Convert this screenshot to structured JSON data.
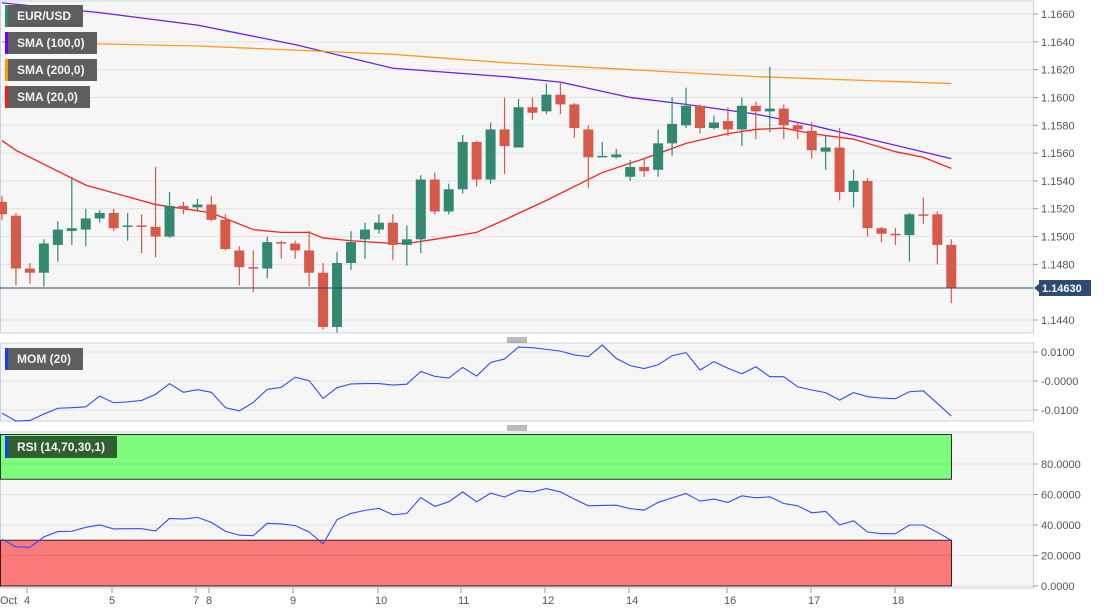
{
  "legends": {
    "main": [
      {
        "label": "EUR/USD",
        "color": "#2e8b72"
      },
      {
        "label": "SMA (100,0)",
        "color": "#6a00ff"
      },
      {
        "label": "SMA (200,0)",
        "color": "#ff9800"
      },
      {
        "label": "SMA (20,0)",
        "color": "#ff1a1a"
      }
    ],
    "mom": {
      "label": "MOM (20)",
      "color": "#1a3cff"
    },
    "rsi": {
      "label": "RSI (14,70,30,1)",
      "color": "#1a3cff"
    }
  },
  "colors": {
    "up": "#338872",
    "down": "#d65a4a",
    "sma100": "#6a1ee8",
    "sma200": "#ff9a1a",
    "sma20": "#ff2020",
    "osc": "#2f4cff",
    "overbought": "#7dfc7d",
    "oversold": "#fa7a7a",
    "last_price_bg": "#2d4a75"
  },
  "chart_data": [
    {
      "type": "candlestick",
      "title": "EUR/USD",
      "ylim": [
        1.143,
        1.167
      ],
      "yticks": [
        "1.1660",
        "1.1640",
        "1.1620",
        "1.1600",
        "1.1580",
        "1.1560",
        "1.1540",
        "1.1520",
        "1.1500",
        "1.1480",
        "1.1440"
      ],
      "last_price": "1.14630",
      "ohlc": [
        [
          1.1525,
          1.1529,
          1.1512,
          1.1516
        ],
        [
          1.1515,
          1.1517,
          1.1465,
          1.1477
        ],
        [
          1.1477,
          1.1481,
          1.1466,
          1.1474
        ],
        [
          1.1474,
          1.1498,
          1.1464,
          1.1495
        ],
        [
          1.1494,
          1.1511,
          1.1482,
          1.1505
        ],
        [
          1.1504,
          1.1543,
          1.1494,
          1.1506
        ],
        [
          1.1505,
          1.152,
          1.1493,
          1.1513
        ],
        [
          1.1513,
          1.1519,
          1.151,
          1.1517
        ],
        [
          1.1517,
          1.152,
          1.1504,
          1.1506
        ],
        [
          1.1507,
          1.1517,
          1.1497,
          1.1508
        ],
        [
          1.1508,
          1.1516,
          1.1488,
          1.1507
        ],
        [
          1.1507,
          1.155,
          1.1485,
          1.15
        ],
        [
          1.15,
          1.1532,
          1.1499,
          1.1522
        ],
        [
          1.1522,
          1.1525,
          1.1516,
          1.152
        ],
        [
          1.1521,
          1.1527,
          1.1519,
          1.1523
        ],
        [
          1.1523,
          1.1529,
          1.1511,
          1.1512
        ],
        [
          1.1512,
          1.1516,
          1.149,
          1.1491
        ],
        [
          1.149,
          1.1493,
          1.1465,
          1.1478
        ],
        [
          1.1478,
          1.149,
          1.146,
          1.1477
        ],
        [
          1.1477,
          1.15,
          1.147,
          1.1496
        ],
        [
          1.1496,
          1.1497,
          1.1484,
          1.1495
        ],
        [
          1.1495,
          1.1497,
          1.1484,
          1.149
        ],
        [
          1.149,
          1.1504,
          1.1464,
          1.1474
        ],
        [
          1.1474,
          1.1481,
          1.1433,
          1.1435
        ],
        [
          1.1435,
          1.1489,
          1.1431,
          1.1481
        ],
        [
          1.1481,
          1.1504,
          1.1476,
          1.1496
        ],
        [
          1.1498,
          1.151,
          1.1484,
          1.1505
        ],
        [
          1.1505,
          1.1516,
          1.1502,
          1.151
        ],
        [
          1.151,
          1.1516,
          1.1483,
          1.1494
        ],
        [
          1.1494,
          1.1508,
          1.1479,
          1.1498
        ],
        [
          1.1498,
          1.1544,
          1.1488,
          1.1541
        ],
        [
          1.1541,
          1.1546,
          1.1516,
          1.1518
        ],
        [
          1.1518,
          1.1538,
          1.1516,
          1.1534
        ],
        [
          1.1534,
          1.1573,
          1.1531,
          1.1568
        ],
        [
          1.1568,
          1.1569,
          1.1536,
          1.1541
        ],
        [
          1.1541,
          1.1582,
          1.1538,
          1.1577
        ],
        [
          1.1577,
          1.16,
          1.1545,
          1.1565
        ],
        [
          1.1564,
          1.1599,
          1.1564,
          1.1593
        ],
        [
          1.1593,
          1.16,
          1.1584,
          1.1589
        ],
        [
          1.159,
          1.161,
          1.1588,
          1.1602
        ],
        [
          1.1602,
          1.1611,
          1.1588,
          1.1595
        ],
        [
          1.1595,
          1.1596,
          1.1571,
          1.1578
        ],
        [
          1.1577,
          1.158,
          1.1535,
          1.1557
        ],
        [
          1.1558,
          1.1568,
          1.1557,
          1.1558
        ],
        [
          1.1557,
          1.1563,
          1.1556,
          1.1559
        ],
        [
          1.1543,
          1.1555,
          1.154,
          1.155
        ],
        [
          1.155,
          1.1556,
          1.1543,
          1.1547
        ],
        [
          1.1548,
          1.1577,
          1.1543,
          1.1567
        ],
        [
          1.1567,
          1.16,
          1.1558,
          1.1581
        ],
        [
          1.158,
          1.1607,
          1.1578,
          1.1594
        ],
        [
          1.1594,
          1.1595,
          1.1574,
          1.1578
        ],
        [
          1.1578,
          1.1587,
          1.1577,
          1.1582
        ],
        [
          1.1583,
          1.1593,
          1.1572,
          1.1577
        ],
        [
          1.1577,
          1.16,
          1.1565,
          1.1594
        ],
        [
          1.1594,
          1.1597,
          1.157,
          1.159
        ],
        [
          1.159,
          1.1622,
          1.1575,
          1.1592
        ],
        [
          1.1592,
          1.1595,
          1.157,
          1.158
        ],
        [
          1.158,
          1.1582,
          1.157,
          1.1577
        ],
        [
          1.1576,
          1.1582,
          1.1556,
          1.1562
        ],
        [
          1.1561,
          1.1573,
          1.1548,
          1.1564
        ],
        [
          1.1564,
          1.1578,
          1.1526,
          1.1532
        ],
        [
          1.1532,
          1.1548,
          1.1521,
          1.154
        ],
        [
          1.154,
          1.1542,
          1.15,
          1.1506
        ],
        [
          1.1506,
          1.1507,
          1.1496,
          1.1502
        ],
        [
          1.1502,
          1.1506,
          1.1494,
          1.1501
        ],
        [
          1.1501,
          1.1517,
          1.1482,
          1.1516
        ],
        [
          1.1516,
          1.1528,
          1.1509,
          1.1515
        ],
        [
          1.1516,
          1.1518,
          1.148,
          1.1494
        ],
        [
          1.1494,
          1.1498,
          1.1452,
          1.1463
        ]
      ],
      "sma": [
        {
          "name": "SMA (100,0)",
          "points": [
            [
              0,
              1.1668
            ],
            [
              7,
              1.1661
            ],
            [
              14,
              1.1652
            ],
            [
              21,
              1.1638
            ],
            [
              28,
              1.1621
            ],
            [
              36,
              1.1615
            ],
            [
              40,
              1.1611
            ],
            [
              45,
              1.16
            ],
            [
              49,
              1.1595
            ],
            [
              54,
              1.1588
            ],
            [
              58,
              1.158
            ],
            [
              63,
              1.1568
            ],
            [
              68,
              1.1556
            ]
          ]
        },
        {
          "name": "SMA (200,0)",
          "points": [
            [
              0,
              1.164
            ],
            [
              14,
              1.1637
            ],
            [
              28,
              1.1631
            ],
            [
              36,
              1.1625
            ],
            [
              54,
              1.1615
            ],
            [
              68,
              1.161
            ]
          ]
        },
        {
          "name": "SMA (20,0)",
          "points": [
            [
              0,
              1.1569
            ],
            [
              1,
              1.1562
            ],
            [
              6,
              1.1537
            ],
            [
              11,
              1.1523
            ],
            [
              15,
              1.1517
            ],
            [
              18,
              1.1505
            ],
            [
              20,
              1.1503
            ],
            [
              22,
              1.1503
            ],
            [
              23,
              1.1499
            ],
            [
              25,
              1.1497
            ],
            [
              28,
              1.1495
            ],
            [
              29,
              1.1495
            ],
            [
              31,
              1.1498
            ],
            [
              34,
              1.1503
            ],
            [
              36,
              1.1512
            ],
            [
              39,
              1.1526
            ],
            [
              43,
              1.1546
            ],
            [
              46,
              1.1556
            ],
            [
              49,
              1.1567
            ],
            [
              52,
              1.1574
            ],
            [
              54,
              1.1577
            ],
            [
              56,
              1.1578
            ],
            [
              58,
              1.1574
            ],
            [
              61,
              1.157
            ],
            [
              64,
              1.1561
            ],
            [
              66,
              1.1557
            ],
            [
              68,
              1.1549
            ]
          ]
        }
      ]
    },
    {
      "type": "line",
      "title": "MOM (20)",
      "ylim": [
        -0.014,
        0.013
      ],
      "yticks": [
        "0.0100",
        "-0.0000",
        "-0.0100"
      ],
      "values": [
        -0.0111,
        -0.0138,
        -0.0136,
        -0.0114,
        -0.0094,
        -0.0092,
        -0.0089,
        -0.0052,
        -0.0075,
        -0.0072,
        -0.0067,
        -0.0046,
        -0.0009,
        -0.0039,
        -0.003,
        -0.0039,
        -0.0092,
        -0.0103,
        -0.0074,
        -0.0029,
        -0.0022,
        0.0013,
        0.0001,
        -0.006,
        -0.0023,
        -0.001,
        -0.0009,
        -0.0009,
        -0.0014,
        -0.0011,
        0.0033,
        0.0016,
        0.001,
        0.0047,
        0.0017,
        0.0064,
        0.0076,
        0.0117,
        0.0115,
        0.0109,
        0.0103,
        0.009,
        0.0084,
        0.0124,
        0.0078,
        0.0053,
        0.0043,
        0.0056,
        0.0087,
        0.0098,
        0.0038,
        0.0067,
        0.0044,
        0.0025,
        0.0049,
        0.0015,
        0.0015,
        -0.002,
        -0.0031,
        -0.004,
        -0.0066,
        -0.004,
        -0.0054,
        -0.0059,
        -0.0061,
        -0.0037,
        -0.0034,
        -0.0077,
        -0.0121
      ]
    },
    {
      "type": "line",
      "title": "RSI (14,70,30,1)",
      "ylim": [
        0,
        100
      ],
      "overbought": 70,
      "oversold": 30,
      "yticks": [
        "80.0000",
        "60.0000",
        "40.0000",
        "20.0000",
        "0.0000"
      ],
      "values": [
        30.7,
        25.7,
        25.4,
        32.2,
        35.7,
        35.9,
        38.5,
        40.0,
        37.4,
        37.6,
        37.6,
        36.1,
        44.3,
        43.9,
        45.0,
        41.7,
        35.9,
        33.3,
        33.0,
        41.1,
        40.7,
        39.6,
        35.4,
        27.6,
        43.5,
        47.6,
        49.6,
        50.9,
        46.7,
        47.6,
        58.0,
        52.2,
        55.2,
        61.7,
        55.2,
        60.9,
        58.3,
        62.6,
        61.7,
        63.9,
        61.7,
        57.0,
        52.6,
        52.8,
        53.0,
        50.7,
        49.8,
        54.8,
        57.8,
        60.7,
        55.7,
        57.0,
        54.8,
        59.1,
        57.8,
        58.5,
        54.1,
        52.6,
        48.0,
        48.9,
        40.0,
        42.8,
        35.4,
        34.3,
        34.3,
        40.0,
        40.0,
        35.2,
        30.0
      ]
    }
  ],
  "x_axis": {
    "labels": [
      "Oct",
      "4",
      "5",
      "7",
      "8",
      "9",
      "10",
      "11",
      "12",
      "14",
      "16",
      "17",
      "18"
    ]
  }
}
